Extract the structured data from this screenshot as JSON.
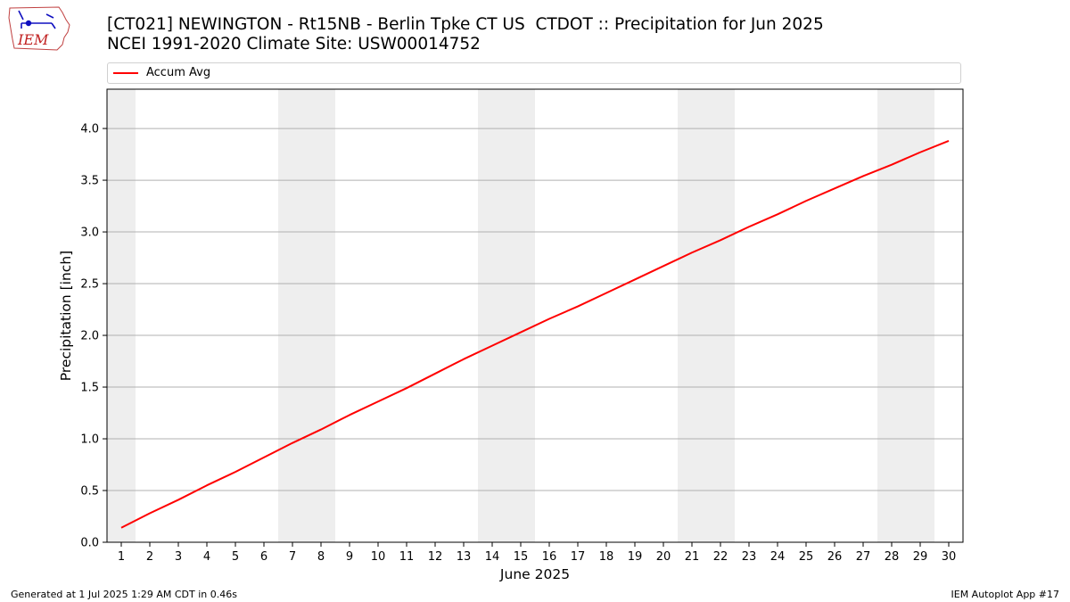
{
  "header": {
    "title_line1": "[CT021] NEWINGTON - Rt15NB - Berlin Tpke CT US  CTDOT :: Precipitation for Jun 2025",
    "title_line2": "NCEI 1991-2020 Climate Site: USW00014752"
  },
  "logo": {
    "text": "IEM",
    "icon": "iowa-state-logo-icon"
  },
  "footer": {
    "left": "Generated at 1 Jul 2025 1:29 AM CDT in 0.46s",
    "right": "IEM Autoplot App #17"
  },
  "chart_data": {
    "type": "line",
    "xlabel": "June 2025",
    "ylabel": "Precipitation [inch]",
    "xlim": [
      0.5,
      30.5
    ],
    "ylim": [
      0,
      4.38
    ],
    "yticks": [
      0.0,
      0.5,
      1.0,
      1.5,
      2.0,
      2.5,
      3.0,
      3.5,
      4.0
    ],
    "ytick_labels": [
      "0.0",
      "0.5",
      "1.0",
      "1.5",
      "2.0",
      "2.5",
      "3.0",
      "3.5",
      "4.0"
    ],
    "xticks": [
      1,
      2,
      3,
      4,
      5,
      6,
      7,
      8,
      9,
      10,
      11,
      12,
      13,
      14,
      15,
      16,
      17,
      18,
      19,
      20,
      21,
      22,
      23,
      24,
      25,
      26,
      27,
      28,
      29,
      30
    ],
    "grid": "y-axis",
    "legend_position": "top",
    "weekend_shading": [
      [
        0.5,
        1.5
      ],
      [
        6.5,
        8.5
      ],
      [
        13.5,
        15.5
      ],
      [
        20.5,
        22.5
      ],
      [
        27.5,
        29.5
      ]
    ],
    "shade_color": "#eeeeee",
    "series": [
      {
        "name": "Accum Avg",
        "color": "#ff0000",
        "x": [
          1,
          2,
          3,
          4,
          5,
          6,
          7,
          8,
          9,
          10,
          11,
          12,
          13,
          14,
          15,
          16,
          17,
          18,
          19,
          20,
          21,
          22,
          23,
          24,
          25,
          26,
          27,
          28,
          29,
          30
        ],
        "values": [
          0.14,
          0.28,
          0.41,
          0.55,
          0.68,
          0.82,
          0.96,
          1.09,
          1.23,
          1.36,
          1.49,
          1.63,
          1.77,
          1.9,
          2.03,
          2.16,
          2.28,
          2.41,
          2.54,
          2.67,
          2.8,
          2.92,
          3.05,
          3.17,
          3.3,
          3.42,
          3.54,
          3.65,
          3.77,
          3.88
        ]
      }
    ]
  }
}
